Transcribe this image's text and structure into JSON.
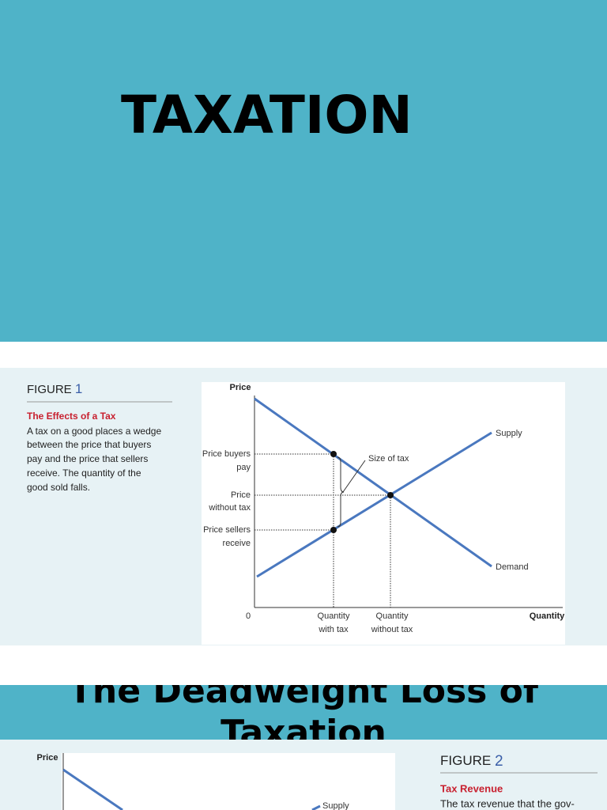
{
  "slide1": {
    "title": "TAXATION"
  },
  "figure1": {
    "label": "FIGURE",
    "number": "1",
    "heading": "The Effects of a Tax",
    "caption": [
      "A tax on a good places a wedge",
      "between the price that buyers",
      "pay and the price that sellers",
      "receive. The quantity of the",
      "good sold falls."
    ],
    "chart": {
      "y_axis": "Price",
      "x_axis": "Quantity",
      "origin": "0",
      "supply": "Supply",
      "demand": "Demand",
      "size_of_tax": "Size of tax",
      "price_buyers_pay": [
        "Price buyers",
        "pay"
      ],
      "price_without_tax": [
        "Price",
        "without tax"
      ],
      "price_sellers_receive": [
        "Price sellers",
        "receive"
      ],
      "quantity_with_tax": [
        "Quantity",
        "with tax"
      ],
      "quantity_without_tax": [
        "Quantity",
        "without tax"
      ]
    }
  },
  "slide3": {
    "title_lines": [
      "The Deadweight Loss of",
      "Taxation"
    ]
  },
  "figure2": {
    "label": "FIGURE",
    "number": "2",
    "heading": "Tax Revenue",
    "caption": [
      "The tax revenue that the gov-"
    ],
    "chart": {
      "y_axis": "Price",
      "supply": "Supply"
    }
  }
}
